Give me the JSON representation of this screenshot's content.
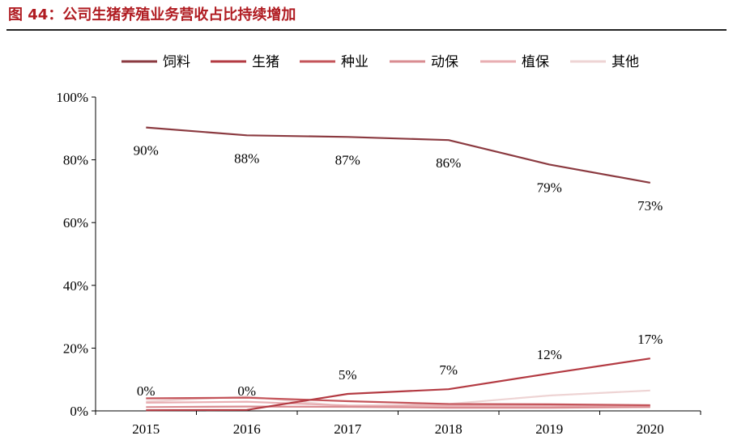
{
  "figure": {
    "title": "图 44：公司生猪养殖业务营收占比持续增加"
  },
  "chart_data": {
    "type": "line",
    "categories": [
      "2015",
      "2016",
      "2017",
      "2018",
      "2019",
      "2020"
    ],
    "y_ticks": [
      "0%",
      "20%",
      "40%",
      "60%",
      "80%",
      "100%"
    ],
    "ylim": [
      0,
      100
    ],
    "legend_position": "top",
    "grid": false,
    "series": [
      {
        "name": "饲料",
        "color": "#8b3a40",
        "values": [
          90.3,
          87.8,
          87.3,
          86.3,
          78.5,
          72.7
        ],
        "labels": [
          "90%",
          "88%",
          "87%",
          "86%",
          "79%",
          "73%"
        ]
      },
      {
        "name": "生猪",
        "color": "#b33a42",
        "values": [
          0.2,
          0.3,
          5.4,
          6.9,
          11.9,
          16.7
        ],
        "labels": [
          "0%",
          "0%",
          "5%",
          "7%",
          "12%",
          "17%"
        ]
      },
      {
        "name": "种业",
        "color": "#c4545a",
        "values": [
          4.0,
          4.2,
          3.1,
          2.2,
          2.1,
          1.8
        ]
      },
      {
        "name": "动保",
        "color": "#d98c91",
        "values": [
          1.2,
          1.4,
          1.3,
          1.0,
          1.0,
          1.2
        ]
      },
      {
        "name": "植保",
        "color": "#e8aeb2",
        "values": [
          2.6,
          2.9,
          1.7,
          1.6,
          1.6,
          1.4
        ]
      },
      {
        "name": "其他",
        "color": "#eed4d4",
        "values": [
          3.0,
          4.6,
          1.4,
          2.2,
          4.9,
          6.5
        ]
      }
    ]
  }
}
